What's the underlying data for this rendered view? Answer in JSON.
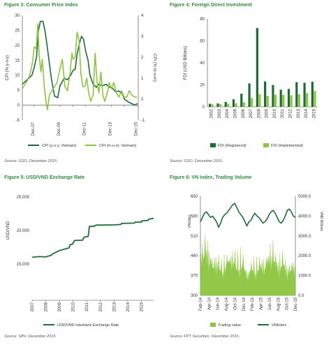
{
  "figures": [
    {
      "title": "Figure 3: Consumer Price Index",
      "source": "Source: GSO, December 2015."
    },
    {
      "title": "Figure 4: Foreign Direct Investment",
      "source": "Source: GSO, December 2015."
    },
    {
      "title": "Figure 5: USD/VND Exchange Rate",
      "source": "Source: SBV, December 2015."
    },
    {
      "title": "Figure 6: VN Index, Trading Volume",
      "source": "Source: FPT Securities, December 2015."
    }
  ],
  "colors": {
    "dark_green": "#1e6b37",
    "light_green": "#8cc63f",
    "title_green": "#2e8b3c"
  },
  "chart_data": [
    {
      "type": "line",
      "title": "Figure 3: Consumer Price Index",
      "ylabel": "CPI (% y-o-y)",
      "y2label": "CPI (% m-o-m)",
      "ylim": [
        -5,
        30
      ],
      "y2lim": [
        -1,
        4
      ],
      "yticks": [
        "-5",
        "0",
        "5",
        "10",
        "15",
        "20",
        "25",
        "30"
      ],
      "y2ticks": [
        "-1",
        "0",
        "1",
        "2",
        "3",
        "4"
      ],
      "xticks": [
        "Dec-07",
        "Dec-09",
        "Dec-11",
        "Dec-13",
        "Dec-15"
      ],
      "xticks_minor": [
        "Dec-08",
        "Dec-10",
        "Dec-12",
        "Dec-14"
      ],
      "xrange": [
        2007.0,
        2016.0
      ],
      "legend": "bottom",
      "series": [
        {
          "name": "CPI (y-o-y, Vietnam)",
          "axis": "left",
          "color": "#1e6b37",
          "x": [
            2007.0,
            2007.25,
            2007.5,
            2007.75,
            2007.92,
            2008.1,
            2008.25,
            2008.4,
            2008.6,
            2008.75,
            2008.92,
            2009.1,
            2009.25,
            2009.5,
            2009.75,
            2009.92,
            2010.25,
            2010.5,
            2010.75,
            2010.92,
            2011.1,
            2011.25,
            2011.45,
            2011.6,
            2011.75,
            2011.92,
            2012.1,
            2012.25,
            2012.5,
            2012.75,
            2012.92,
            2013.25,
            2013.5,
            2013.75,
            2013.92,
            2014.25,
            2014.5,
            2014.75,
            2014.92,
            2015.25,
            2015.5,
            2015.75,
            2015.92
          ],
          "values": [
            7,
            8,
            9,
            10,
            12.6,
            16,
            25,
            28,
            28,
            25,
            20,
            14,
            9,
            3,
            2.5,
            6.5,
            9,
            8.5,
            10,
            11.5,
            12,
            17,
            21,
            23,
            22,
            18,
            15,
            10,
            7,
            6,
            7,
            6.5,
            7,
            6,
            6,
            4.5,
            4.7,
            4,
            2,
            1,
            0.5,
            0,
            0.6
          ]
        },
        {
          "name": "CPI (m-o-m, Vietnam)",
          "axis": "right",
          "color": "#8cc63f",
          "x": [
            2007.0,
            2007.2,
            2007.4,
            2007.6,
            2007.8,
            2007.92,
            2008.08,
            2008.2,
            2008.3,
            2008.45,
            2008.55,
            2008.7,
            2008.85,
            2008.95,
            2009.1,
            2009.3,
            2009.5,
            2009.7,
            2009.9,
            2010.1,
            2010.3,
            2010.5,
            2010.7,
            2010.85,
            2010.95,
            2011.1,
            2011.25,
            2011.4,
            2011.55,
            2011.7,
            2011.85,
            2012.0,
            2012.15,
            2012.3,
            2012.5,
            2012.65,
            2012.8,
            2012.95,
            2013.1,
            2013.25,
            2013.4,
            2013.6,
            2013.75,
            2013.9,
            2014.1,
            2014.3,
            2014.5,
            2014.7,
            2014.9,
            2015.1,
            2015.3,
            2015.5,
            2015.7,
            2015.9
          ],
          "values": [
            0.5,
            0.7,
            0.9,
            1.2,
            1.8,
            2.5,
            2.4,
            3.6,
            2.1,
            1.3,
            1.9,
            0.6,
            -0.2,
            -0.5,
            0.2,
            0.4,
            0.6,
            0.8,
            1.4,
            1.9,
            0.6,
            0.4,
            1.2,
            2.2,
            1.9,
            2.0,
            3.2,
            2.8,
            1.2,
            0.6,
            0.6,
            1.0,
            0.3,
            -0.1,
            0.2,
            2.2,
            0.8,
            0.3,
            1.3,
            0.2,
            -0.1,
            0.3,
            0.8,
            0.5,
            0.8,
            0.3,
            0.1,
            0.4,
            0.1,
            0.1,
            0.4,
            0.2,
            0.1,
            0.1
          ]
        }
      ]
    },
    {
      "type": "bar",
      "title": "Figure 4: Foreign Direct Investment",
      "ylabel": "FDI (USD Billions)",
      "ylim": [
        0,
        80
      ],
      "yticks": [
        "0",
        "20",
        "40",
        "60",
        "80"
      ],
      "categories": [
        "2002",
        "2003",
        "2004",
        "2005",
        "2006",
        "2007",
        "2008",
        "2009",
        "2010",
        "2011",
        "2012",
        "2013",
        "2014",
        "2015"
      ],
      "legend": "bottom",
      "series": [
        {
          "name": "FDI (Registered)",
          "color": "#1e6b37",
          "values": [
            2.8,
            3.1,
            4.5,
            6.8,
            12.0,
            21.3,
            71.7,
            23.1,
            19.9,
            15.6,
            16.3,
            22.4,
            21.9,
            22.8
          ]
        },
        {
          "name": "FDI (Implemented)",
          "color": "#8cc63f",
          "values": [
            2.3,
            2.6,
            2.9,
            3.3,
            4.1,
            8.0,
            11.5,
            10.0,
            11.0,
            11.0,
            10.5,
            11.5,
            12.5,
            14.5
          ]
        }
      ]
    },
    {
      "type": "line",
      "title": "Figure 5: USD/VND Exchange Rate",
      "ylabel": "USD/VND",
      "ylim": [
        15000,
        25000
      ],
      "yticks": [
        "15,000",
        "20,000",
        "25,000"
      ],
      "xticks": [
        "2007",
        "2008",
        "2009",
        "2010",
        "2011",
        "2012",
        "2013",
        "2014",
        "2015"
      ],
      "xrange": [
        2007.0,
        2015.9
      ],
      "legend": "bottom",
      "series": [
        {
          "name": "USD/VND Interbank Exchange Rate",
          "color": "#1e6b37",
          "x": [
            2007.0,
            2007.5,
            2008.0,
            2008.4,
            2008.5,
            2008.9,
            2009.0,
            2009.7,
            2009.8,
            2009.95,
            2010.1,
            2010.7,
            2010.8,
            2011.1,
            2011.2,
            2011.5,
            2011.7,
            2012.0,
            2013.0,
            2013.5,
            2013.55,
            2014.5,
            2014.55,
            2015.0,
            2015.05,
            2015.5,
            2015.55,
            2015.9
          ],
          "values": [
            16000,
            16100,
            16050,
            16300,
            16500,
            16900,
            17000,
            17400,
            17900,
            17950,
            18500,
            18550,
            19000,
            19100,
            20600,
            20600,
            20800,
            20800,
            20830,
            20900,
            21050,
            21100,
            21250,
            21250,
            21450,
            21500,
            21700,
            21800
          ]
        }
      ]
    },
    {
      "type": "area",
      "title": "Figure 6: VN Index, Trading Volume",
      "ylabel": "VNIndex",
      "y2label": "VND Billions",
      "ylim": [
        300,
        650
      ],
      "y2lim": [
        0,
        5000
      ],
      "yticks": [
        "300",
        "370",
        "440",
        "510",
        "580",
        "650"
      ],
      "y2ticks": [
        "0.0",
        "1000.0",
        "2000.0",
        "3000.0",
        "4000.0",
        "5000.0"
      ],
      "xticks": [
        "Feb-14",
        "Apr-14",
        "Jun-14",
        "Aug-14",
        "Oct-14",
        "Dec-14",
        "Feb-15",
        "Apr-15",
        "Jun-15",
        "Aug-15",
        "Oct-15",
        "Dec-15"
      ],
      "xrange": [
        2014.08,
        2015.96
      ],
      "legend": "bottom",
      "series": [
        {
          "name": "Trading value",
          "axis": "right",
          "color": "#8cc63f",
          "x": [
            2014.08,
            2014.2,
            2014.3,
            2014.4,
            2014.5,
            2014.6,
            2014.7,
            2014.8,
            2014.9,
            2015.0,
            2015.1,
            2015.2,
            2015.3,
            2015.4,
            2015.5,
            2015.6,
            2015.7,
            2015.8,
            2015.9,
            2015.96
          ],
          "values": [
            2800,
            3600,
            2400,
            2600,
            1900,
            2500,
            3300,
            2200,
            2600,
            1800,
            2100,
            2000,
            2400,
            2500,
            3300,
            2200,
            2600,
            1900,
            2200,
            2100
          ]
        },
        {
          "name": "VNIndex",
          "axis": "left",
          "color": "#1e6b37",
          "x": [
            2014.08,
            2014.12,
            2014.16,
            2014.2,
            2014.24,
            2014.28,
            2014.32,
            2014.36,
            2014.4,
            2014.44,
            2014.48,
            2014.52,
            2014.56,
            2014.6,
            2014.64,
            2014.68,
            2014.72,
            2014.76,
            2014.8,
            2014.84,
            2014.88,
            2014.92,
            2014.96,
            2015.0,
            2015.04,
            2015.08,
            2015.12,
            2015.16,
            2015.2,
            2015.24,
            2015.28,
            2015.32,
            2015.36,
            2015.4,
            2015.44,
            2015.48,
            2015.52,
            2015.56,
            2015.6,
            2015.64,
            2015.68,
            2015.72,
            2015.76,
            2015.8,
            2015.84,
            2015.88,
            2015.92,
            2015.96
          ],
          "values": [
            560,
            575,
            590,
            595,
            585,
            575,
            580,
            570,
            560,
            540,
            555,
            575,
            585,
            590,
            600,
            610,
            620,
            625,
            610,
            595,
            585,
            575,
            560,
            545,
            560,
            565,
            580,
            590,
            580,
            575,
            565,
            555,
            560,
            570,
            585,
            595,
            600,
            590,
            575,
            560,
            555,
            565,
            580,
            600,
            605,
            595,
            580,
            575
          ]
        }
      ]
    }
  ]
}
